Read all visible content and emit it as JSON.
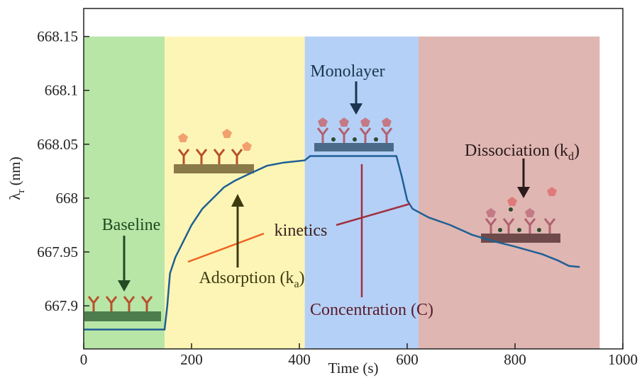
{
  "chart_data": {
    "type": "line",
    "xlabel": "Time (s)",
    "ylabel": {
      "text": "λ",
      "sub": "r",
      "tail": " (nm)"
    },
    "xlim": [
      0,
      1000
    ],
    "xticks": [
      0,
      200,
      400,
      600,
      800,
      1000
    ],
    "ylim": [
      667.86,
      668.176
    ],
    "yticks": [
      667.9,
      667.95,
      668,
      668.05,
      668.1,
      668.15
    ],
    "color": "#1f5f95",
    "x": [
      0,
      150,
      155,
      160,
      170,
      185,
      200,
      220,
      240,
      260,
      280,
      305,
      340,
      371,
      410,
      420,
      580,
      590,
      600,
      610,
      640,
      680,
      720,
      760,
      800,
      850,
      880,
      900,
      920
    ],
    "values": [
      667.878,
      667.878,
      667.9,
      667.93,
      667.945,
      667.96,
      667.975,
      667.99,
      668.0,
      668.01,
      668.016,
      668.022,
      668.03,
      668.033,
      668.035,
      668.039,
      668.039,
      668.02,
      667.998,
      667.99,
      667.982,
      667.975,
      667.966,
      667.96,
      667.955,
      667.948,
      667.942,
      667.937,
      667.936
    ],
    "regions": [
      {
        "x": [
          0,
          150
        ],
        "y_top": 668.15,
        "color": "#b7e6a7"
      },
      {
        "x": [
          150,
          410
        ],
        "y_top": 668.15,
        "color": "#fdf5b5"
      },
      {
        "x": [
          410,
          621
        ],
        "y_top": 668.15,
        "color": "#b5d0f6"
      },
      {
        "x": [
          621,
          957
        ],
        "y_top": 668.15,
        "color": "#dfb6b2"
      }
    ],
    "annotations": [
      {
        "text": "Baseline"
      },
      {
        "text": "Adsorption (k",
        "sub": "a",
        "tail": ")"
      },
      {
        "text": "kinetics"
      },
      {
        "text": "Monolayer"
      },
      {
        "text": "Concentration (C)"
      },
      {
        "text": "Dissociation (k",
        "sub": "d",
        "tail": ")"
      }
    ]
  }
}
